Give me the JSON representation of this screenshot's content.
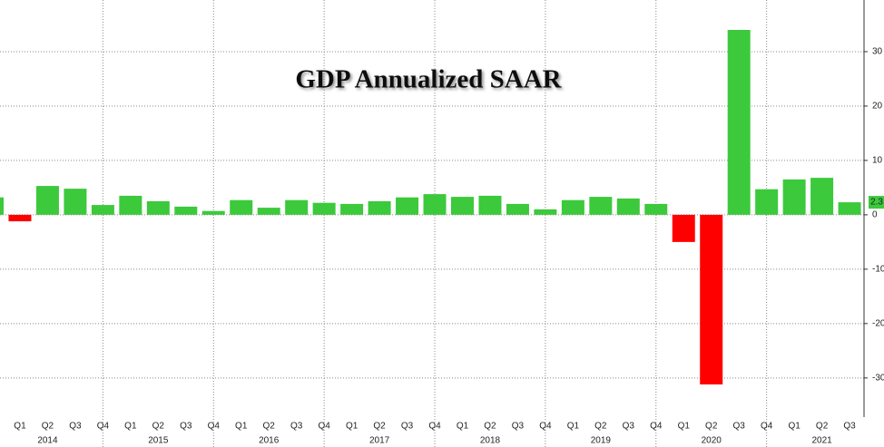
{
  "chart_data": {
    "type": "bar",
    "title": "GDP Annualized SAAR",
    "categories": [
      null,
      "Q1",
      "Q2",
      "Q3",
      "Q4",
      "Q1",
      "Q2",
      "Q3",
      "Q4",
      "Q1",
      "Q2",
      "Q3",
      "Q4",
      "Q1",
      "Q2",
      "Q3",
      "Q4",
      "Q1",
      "Q2",
      "Q3",
      "Q4",
      "Q1",
      "Q2",
      "Q3",
      "Q4",
      "Q1",
      "Q2",
      "Q3",
      "Q4",
      "Q1",
      "Q2",
      "Q3"
    ],
    "x_groups": [
      "2014",
      "2015",
      "2016",
      "2017",
      "2018",
      "2019",
      "2020",
      "2021"
    ],
    "values": [
      3.2,
      -1.2,
      5.3,
      4.8,
      1.8,
      3.5,
      2.5,
      1.5,
      0.7,
      2.7,
      1.3,
      2.7,
      2.2,
      2.0,
      2.5,
      3.2,
      3.8,
      3.3,
      3.5,
      2.0,
      1.0,
      2.7,
      3.3,
      3.0,
      2.0,
      -5.0,
      -31.2,
      34.0,
      4.7,
      6.5,
      6.8,
      2.3
    ],
    "last_value_label": "2.3",
    "positive_color": "#3cc93c",
    "negative_color": "#ff0000",
    "ylim": [
      -37.2,
      39.5
    ],
    "yticks": [
      30,
      20,
      10,
      0,
      -10,
      -20,
      -30
    ],
    "grid": true
  }
}
